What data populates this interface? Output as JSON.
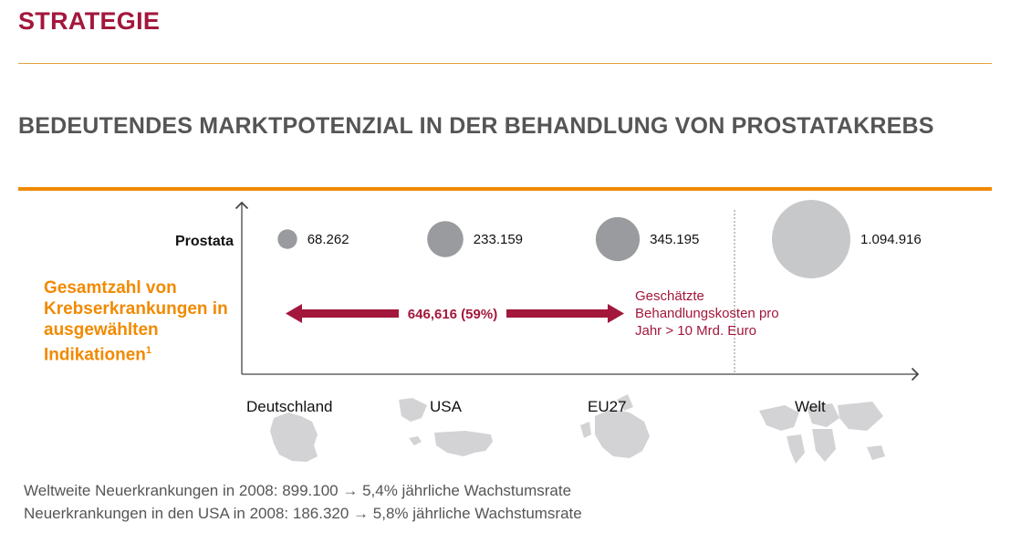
{
  "header": {
    "section_title": "STRATEGIE",
    "slide_title": "BEDEUTENDES MARKTPOTENZIAL IN DER BEHANDLUNG VON PROSTATAKREBS"
  },
  "chart_data": {
    "type": "bubble",
    "row_label": "Prostata",
    "y_axis_label": "Gesamtzahl von Krebserkrankungen in ausgewählten Indikationen",
    "y_axis_footnote": "1",
    "categories": [
      "Deutschland",
      "USA",
      "EU27",
      "Welt"
    ],
    "values": [
      68262,
      233159,
      345195,
      1094916
    ],
    "value_labels": [
      "68.262",
      "233.159",
      "345.195",
      "1.094.916"
    ],
    "colors": [
      "#9a9b9e",
      "#9a9b9e",
      "#9a9b9e",
      "#c7c8ca"
    ],
    "arrow_label": "646,616 (59%)",
    "arrow_color": "#a3173c",
    "annotation": [
      "Geschätzte",
      "Behandlungskosten pro",
      "Jahr > 10 Mrd. Euro"
    ]
  },
  "footer": {
    "line1": "Weltweite Neuerkrankungen in 2008: 899.100 → 5,4% jährliche Wachstumsrate",
    "line2": "Neuerkrankungen in den USA in 2008: 186.320 → 5,8% jährliche Wachstumsrate"
  }
}
